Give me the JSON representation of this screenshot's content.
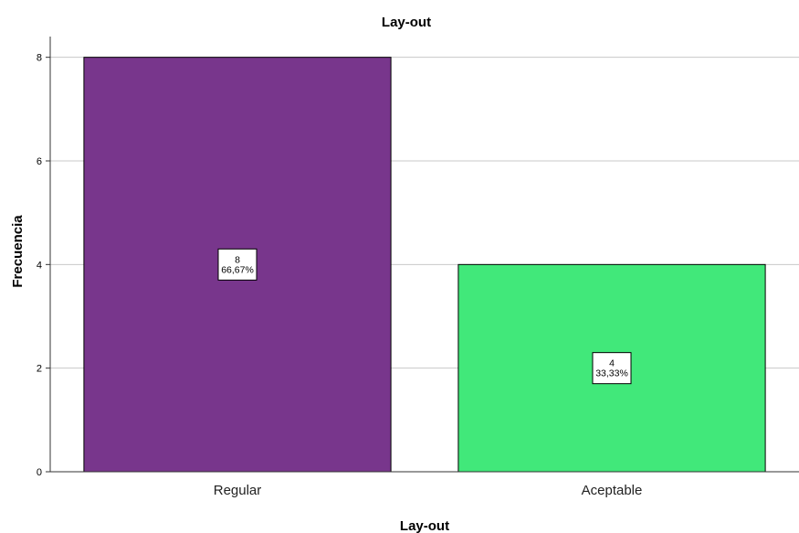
{
  "chart_data": {
    "type": "bar",
    "title": "Lay-out",
    "xlabel": "Lay-out",
    "ylabel": "Frecuencia",
    "categories": [
      "Regular",
      "Aceptable"
    ],
    "values": [
      8,
      4
    ],
    "data_labels": [
      {
        "count": "8",
        "percent": "66,67%"
      },
      {
        "count": "4",
        "percent": "33,33%"
      }
    ],
    "colors": [
      "#78368c",
      "#41e87a"
    ],
    "ylim": [
      0,
      8.4
    ],
    "yticks": [
      0,
      2,
      4,
      6,
      8
    ],
    "grid": true,
    "legend": "none"
  }
}
